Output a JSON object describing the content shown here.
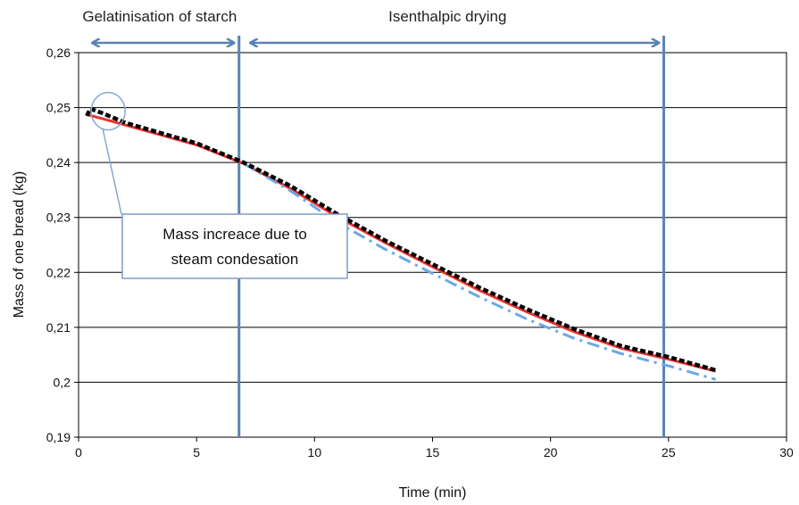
{
  "chart_data": {
    "type": "line",
    "title": "",
    "xlabel": "Time (min)",
    "ylabel": "Mass of one bread (kg)",
    "xlim": [
      0,
      30
    ],
    "ylim": [
      0.19,
      0.26
    ],
    "x_ticks": [
      "0",
      "5",
      "10",
      "15",
      "20",
      "25",
      "30"
    ],
    "y_ticks": [
      "0,19",
      "0,2",
      "0,21",
      "0,22",
      "0,23",
      "0,24",
      "0,25",
      "0,26"
    ],
    "grid": "horizontal",
    "legend": "none",
    "series": [
      {
        "style": "solid",
        "color": "#e8322e",
        "points": [
          [
            0.3,
            0.2488
          ],
          [
            1.0,
            0.248
          ],
          [
            2.0,
            0.2468
          ],
          [
            5.0,
            0.2432
          ],
          [
            7.0,
            0.2398
          ],
          [
            9.0,
            0.2352
          ],
          [
            11.0,
            0.23
          ],
          [
            13.0,
            0.2254
          ],
          [
            15.0,
            0.221
          ],
          [
            17.0,
            0.2167
          ],
          [
            19.0,
            0.2128
          ],
          [
            21.0,
            0.2092
          ],
          [
            23.0,
            0.2062
          ],
          [
            25.0,
            0.2042
          ],
          [
            27.0,
            0.202
          ]
        ]
      },
      {
        "style": "dash-dot",
        "color": "#6aa8e8",
        "points": [
          [
            7.0,
            0.2398
          ],
          [
            9.0,
            0.2348
          ],
          [
            11.0,
            0.229
          ],
          [
            13.0,
            0.2242
          ],
          [
            15.0,
            0.2198
          ],
          [
            17.0,
            0.2155
          ],
          [
            19.0,
            0.2115
          ],
          [
            21.0,
            0.208
          ],
          [
            23.0,
            0.2052
          ],
          [
            25.0,
            0.203
          ],
          [
            27.0,
            0.2005
          ]
        ]
      },
      {
        "style": "dashed",
        "color": "#000000",
        "points": [
          [
            0.35,
            0.2485
          ],
          [
            0.5,
            0.2498
          ],
          [
            1.0,
            0.249
          ],
          [
            2.0,
            0.2472
          ],
          [
            5.0,
            0.2435
          ],
          [
            7.0,
            0.24
          ],
          [
            9.0,
            0.2357
          ],
          [
            11.0,
            0.2305
          ],
          [
            13.0,
            0.2258
          ],
          [
            15.0,
            0.2215
          ],
          [
            17.0,
            0.2172
          ],
          [
            19.0,
            0.2133
          ],
          [
            21.0,
            0.2097
          ],
          [
            23.0,
            0.2066
          ],
          [
            25.0,
            0.2046
          ],
          [
            27.0,
            0.2022
          ]
        ]
      }
    ],
    "phases": [
      {
        "label": "Gelatinisation of starch",
        "start": 0.3,
        "end": 6.8,
        "boundary": 6.8
      },
      {
        "label": "Isenthalpic drying",
        "start": 7.0,
        "end": 24.8,
        "boundary": 24.8
      }
    ],
    "annotation": {
      "lines": [
        "Mass increace due to",
        "steam condesation"
      ],
      "target": [
        0.8,
        0.2495
      ]
    },
    "colors": {
      "grid": "#000000",
      "phase": "#5b82b8",
      "annotation_border": "#7e9ccc",
      "annotation_circle": "#8aa6d0"
    }
  }
}
